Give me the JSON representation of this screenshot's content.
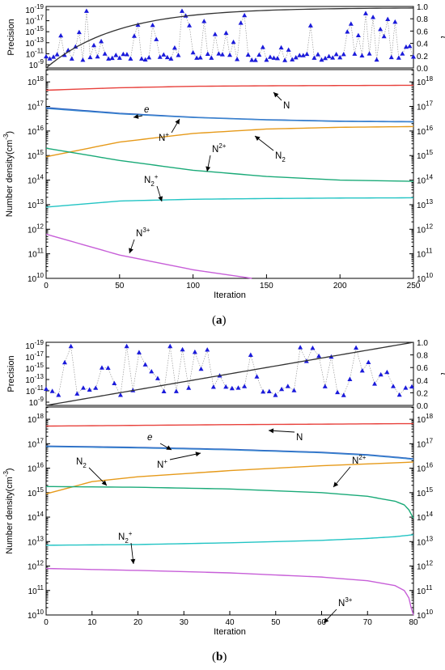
{
  "chart_data": [
    {
      "type": "line",
      "panel_label": "(a)",
      "top": {
        "ylabel_left": "Precision",
        "ylabel_right": "t",
        "left_ticks": [
          "10-19",
          "10-17",
          "10-15",
          "10-13",
          "10-11",
          "10-9"
        ],
        "right_ticks": [
          "0.0",
          "0.2",
          "0.4",
          "0.6",
          "0.8",
          "1.0"
        ],
        "series": [
          {
            "kind": "precision",
            "color": "#1a1adb"
          },
          {
            "kind": "t",
            "color": "#333333",
            "shape": "saturating",
            "t_end": 0.98
          }
        ]
      },
      "main": {
        "xlabel": "Iteration",
        "ylabel": "Number density(cm-3)",
        "xlim": [
          0,
          250
        ],
        "x_ticks": [
          0,
          50,
          100,
          150,
          200,
          250
        ],
        "ylim_exp": [
          10,
          18.5
        ],
        "y_ticks_exp": [
          10,
          11,
          12,
          13,
          14,
          15,
          16,
          17,
          18
        ],
        "series": [
          {
            "label": "N",
            "color": "#e8413c",
            "x": [
              0,
              50,
              100,
              150,
              200,
              250
            ],
            "log10": [
              17.66,
              17.76,
              17.82,
              17.84,
              17.85,
              17.86
            ]
          },
          {
            "label": "e",
            "color": "#1f4fb8",
            "x": [
              0,
              50,
              100,
              150,
              200,
              250
            ],
            "log10": [
              16.95,
              16.72,
              16.56,
              16.46,
              16.4,
              16.38
            ]
          },
          {
            "label": "N+",
            "color": "#3a86d0",
            "x": [
              0,
              50,
              100,
              150,
              200,
              250
            ],
            "log10": [
              16.92,
              16.7,
              16.55,
              16.45,
              16.39,
              16.37
            ]
          },
          {
            "label": "N2",
            "color": "#e69a1a",
            "x": [
              0,
              50,
              100,
              150,
              200,
              250
            ],
            "log10": [
              14.95,
              15.55,
              15.9,
              16.08,
              16.15,
              16.18
            ]
          },
          {
            "label": "N2+ ",
            "color": "#1aaa78",
            "x": [
              0,
              50,
              100,
              150,
              200,
              250
            ],
            "log10": [
              15.3,
              14.8,
              14.4,
              14.15,
              14.0,
              13.95
            ]
          },
          {
            "label": "N2+",
            "color": "#22c4c4",
            "x": [
              0,
              50,
              100,
              150,
              200,
              250
            ],
            "log10": [
              12.9,
              13.15,
              13.22,
              13.25,
              13.27,
              13.28
            ]
          },
          {
            "label": "N3+",
            "color": "#c75fd8",
            "x": [
              0,
              50,
              100,
              140
            ],
            "log10": [
              11.8,
              10.95,
              10.35,
              10.0
            ]
          }
        ],
        "annotations": [
          {
            "text": "N",
            "target": "N"
          },
          {
            "text": "e",
            "target": "e"
          },
          {
            "text": "N+",
            "target": "N+"
          },
          {
            "text": "N2",
            "target": "N2"
          },
          {
            "text": "N2+",
            "target": "N2+ "
          },
          {
            "text": "N2+",
            "target": "N2+"
          },
          {
            "text": "N3+",
            "target": "N3+"
          }
        ]
      }
    },
    {
      "type": "line",
      "panel_label": "(b)",
      "top": {
        "ylabel_left": "Precision",
        "ylabel_right": "t",
        "left_ticks": [
          "10-19",
          "10-17",
          "10-15",
          "10-13",
          "10-11",
          "10-9"
        ],
        "right_ticks": [
          "0.0",
          "0.2",
          "0.4",
          "0.6",
          "0.8",
          "1.0"
        ],
        "series": [
          {
            "kind": "precision",
            "color": "#1a1adb"
          },
          {
            "kind": "t",
            "color": "#333333",
            "shape": "linear",
            "t_end": 1.0
          }
        ]
      },
      "main": {
        "xlabel": "Iteration",
        "ylabel": "Number density(cm-3)",
        "xlim": [
          0,
          80
        ],
        "x_ticks": [
          0,
          10,
          20,
          30,
          40,
          50,
          60,
          70,
          80
        ],
        "ylim_exp": [
          10,
          18.5
        ],
        "y_ticks_exp": [
          10,
          11,
          12,
          13,
          14,
          15,
          16,
          17,
          18
        ],
        "series": [
          {
            "label": "N",
            "color": "#e8413c",
            "x": [
              0,
              20,
              40,
              60,
              78,
              80
            ],
            "log10": [
              17.72,
              17.75,
              17.78,
              17.8,
              17.82,
              17.82
            ]
          },
          {
            "label": "e",
            "color": "#1f4fb8",
            "x": [
              0,
              20,
              40,
              60,
              70,
              78,
              80
            ],
            "log10": [
              16.9,
              16.85,
              16.77,
              16.65,
              16.55,
              16.42,
              16.38
            ]
          },
          {
            "label": "N+",
            "color": "#3a86d0",
            "x": [
              0,
              20,
              40,
              60,
              70,
              78,
              80
            ],
            "log10": [
              16.88,
              16.83,
              16.75,
              16.63,
              16.53,
              16.4,
              16.36
            ]
          },
          {
            "label": "N2",
            "color": "#e69a1a",
            "x": [
              0,
              10,
              20,
              40,
              60,
              80
            ],
            "log10": [
              14.95,
              15.45,
              15.65,
              15.9,
              16.1,
              16.25
            ]
          },
          {
            "label": "N2+ ",
            "color": "#1aaa78",
            "x": [
              0,
              20,
              40,
              60,
              70,
              76,
              78,
              79,
              80
            ],
            "log10": [
              15.25,
              15.22,
              15.15,
              15.0,
              14.85,
              14.65,
              14.5,
              14.3,
              13.95
            ]
          },
          {
            "label": "N2+",
            "color": "#22c4c4",
            "x": [
              0,
              20,
              40,
              60,
              70,
              76,
              80
            ],
            "log10": [
              12.85,
              12.88,
              12.95,
              13.05,
              13.13,
              13.2,
              13.28
            ]
          },
          {
            "label": "N3+",
            "color": "#c75fd8",
            "x": [
              0,
              20,
              40,
              60,
              70,
              76,
              78,
              79,
              79.5,
              80
            ],
            "log10": [
              11.9,
              11.82,
              11.72,
              11.55,
              11.4,
              11.2,
              11.0,
              10.7,
              10.3,
              10.0
            ]
          }
        ],
        "annotations": [
          {
            "text": "N",
            "target": "N"
          },
          {
            "text": "e",
            "target": "e"
          },
          {
            "text": "N+",
            "target": "N+"
          },
          {
            "text": "N2",
            "target": "N2"
          },
          {
            "text": "N2+",
            "target": "N2+ "
          },
          {
            "text": "N2+",
            "target": "N2+"
          },
          {
            "text": "N3+",
            "target": "N3+"
          }
        ]
      }
    }
  ]
}
